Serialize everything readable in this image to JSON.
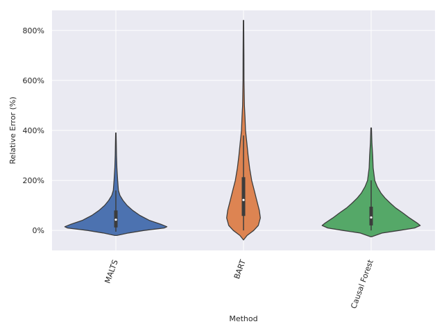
{
  "chart_data": {
    "type": "violin",
    "xlabel": "Method",
    "ylabel": "Relative Error (%)",
    "ylim": [
      -80,
      880
    ],
    "y_ticks": [
      0,
      200,
      400,
      600,
      800
    ],
    "y_tick_labels": [
      "0%",
      "200%",
      "400%",
      "600%",
      "800%"
    ],
    "grid": true,
    "categories": [
      "MALTS",
      "BART",
      "Causal Forest"
    ],
    "colors": {
      "background": "#eaeaf2",
      "grid": "#ffffff",
      "outline": "#3c3c3c",
      "MALTS": "#4c72b0",
      "BART": "#dd8452",
      "Causal Forest": "#55a868"
    },
    "violins": [
      {
        "name": "MALTS",
        "min": -20,
        "max": 390,
        "q1": 12,
        "median": 43,
        "q3": 80,
        "whisker_low": -5,
        "whisker_high": 160,
        "profile": [
          [
            -20,
            0.02
          ],
          [
            -10,
            0.25
          ],
          [
            0,
            0.55
          ],
          [
            10,
            0.95
          ],
          [
            15,
            1.0
          ],
          [
            25,
            0.88
          ],
          [
            40,
            0.66
          ],
          [
            60,
            0.47
          ],
          [
            80,
            0.33
          ],
          [
            100,
            0.22
          ],
          [
            120,
            0.14
          ],
          [
            140,
            0.08
          ],
          [
            160,
            0.05
          ],
          [
            200,
            0.035
          ],
          [
            250,
            0.02
          ],
          [
            300,
            0.012
          ],
          [
            350,
            0.008
          ],
          [
            390,
            0.004
          ]
        ]
      },
      {
        "name": "BART",
        "min": -38,
        "max": 840,
        "q1": 58,
        "median": 122,
        "q3": 213,
        "whisker_low": 0,
        "whisker_high": 380,
        "profile": [
          [
            -38,
            0.0
          ],
          [
            -20,
            0.07
          ],
          [
            0,
            0.2
          ],
          [
            20,
            0.29
          ],
          [
            50,
            0.33
          ],
          [
            80,
            0.31
          ],
          [
            120,
            0.26
          ],
          [
            160,
            0.21
          ],
          [
            200,
            0.16
          ],
          [
            250,
            0.12
          ],
          [
            300,
            0.09
          ],
          [
            350,
            0.065
          ],
          [
            400,
            0.04
          ],
          [
            450,
            0.03
          ],
          [
            500,
            0.018
          ],
          [
            600,
            0.01
          ],
          [
            700,
            0.008
          ],
          [
            840,
            0.004
          ]
        ]
      },
      {
        "name": "Causal Forest",
        "min": -25,
        "max": 410,
        "q1": 20,
        "median": 52,
        "q3": 95,
        "whisker_low": 0,
        "whisker_high": 200,
        "profile": [
          [
            -25,
            0.01
          ],
          [
            -10,
            0.22
          ],
          [
            0,
            0.55
          ],
          [
            10,
            0.85
          ],
          [
            20,
            0.96
          ],
          [
            30,
            0.9
          ],
          [
            50,
            0.75
          ],
          [
            70,
            0.62
          ],
          [
            90,
            0.48
          ],
          [
            110,
            0.37
          ],
          [
            130,
            0.27
          ],
          [
            150,
            0.19
          ],
          [
            175,
            0.12
          ],
          [
            200,
            0.07
          ],
          [
            250,
            0.04
          ],
          [
            300,
            0.03
          ],
          [
            350,
            0.015
          ],
          [
            410,
            0.005
          ]
        ]
      }
    ]
  }
}
